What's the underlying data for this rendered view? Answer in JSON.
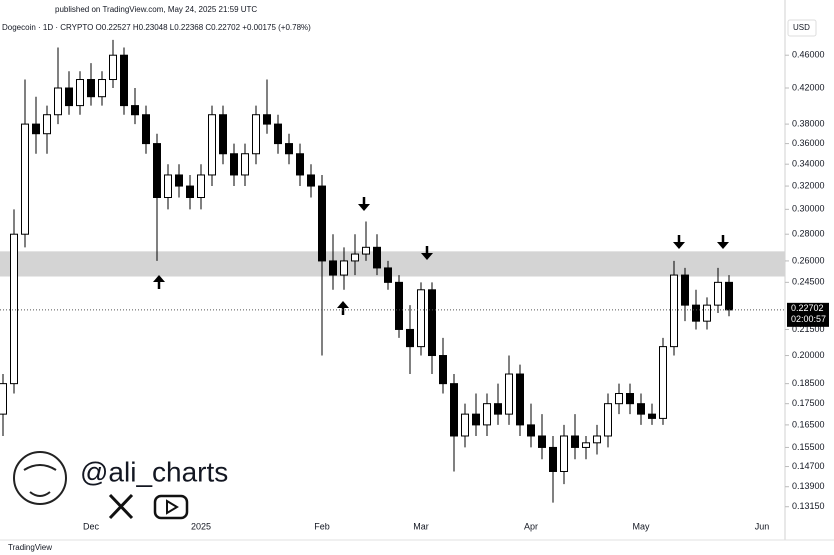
{
  "header": {
    "published": "published on TradingView.com, May 24, 2025 21:59 UTC",
    "footer": "TradingView",
    "handle": "@ali_charts"
  },
  "chart_data": {
    "type": "candlestick",
    "title": "Dogecoin · 1D · CRYPTO  O0.22527 H0.23048 L0.22368 C0.22702 +0.00175 (+0.78%)",
    "currency": "USD",
    "yscale": "log",
    "ylim": [
      0.125,
      0.51
    ],
    "yticks": [
      {
        "value": 0.46,
        "label": "0.46000"
      },
      {
        "value": 0.42,
        "label": "0.42000"
      },
      {
        "value": 0.38,
        "label": "0.38000"
      },
      {
        "value": 0.36,
        "label": "0.36000"
      },
      {
        "value": 0.34,
        "label": "0.34000"
      },
      {
        "value": 0.32,
        "label": "0.32000"
      },
      {
        "value": 0.3,
        "label": "0.30000"
      },
      {
        "value": 0.28,
        "label": "0.28000"
      },
      {
        "value": 0.26,
        "label": "0.26000"
      },
      {
        "value": 0.245,
        "label": "0.24500"
      },
      {
        "value": 0.215,
        "label": "0.21500"
      },
      {
        "value": 0.2,
        "label": "0.20000"
      },
      {
        "value": 0.185,
        "label": "0.18500"
      },
      {
        "value": 0.175,
        "label": "0.17500"
      },
      {
        "value": 0.165,
        "label": "0.16500"
      },
      {
        "value": 0.155,
        "label": "0.15500"
      },
      {
        "value": 0.147,
        "label": "0.14700"
      },
      {
        "value": 0.139,
        "label": "0.13900"
      },
      {
        "value": 0.1315,
        "label": "0.13150"
      }
    ],
    "categories": [
      null,
      null,
      null,
      null,
      null,
      null,
      null,
      null,
      "Dec",
      null,
      null,
      null,
      null,
      null,
      null,
      null,
      null,
      null,
      "2025",
      null,
      null,
      null,
      null,
      null,
      null,
      null,
      null,
      null,
      null,
      "Feb",
      null,
      null,
      null,
      null,
      null,
      null,
      null,
      null,
      "Mar",
      null,
      null,
      null,
      null,
      null,
      null,
      null,
      null,
      null,
      "Apr",
      null,
      null,
      null,
      null,
      null,
      null,
      null,
      null,
      null,
      "May",
      null,
      null,
      null,
      null,
      null,
      null,
      null,
      null,
      null,
      null,
      "Jun"
    ],
    "values": [
      [
        0.17,
        0.19,
        0.16,
        0.185
      ],
      [
        0.185,
        0.3,
        0.18,
        0.28
      ],
      [
        0.28,
        0.43,
        0.27,
        0.38
      ],
      [
        0.38,
        0.41,
        0.35,
        0.37
      ],
      [
        0.37,
        0.4,
        0.35,
        0.39
      ],
      [
        0.39,
        0.47,
        0.38,
        0.42
      ],
      [
        0.42,
        0.44,
        0.39,
        0.4
      ],
      [
        0.4,
        0.44,
        0.39,
        0.43
      ],
      [
        0.43,
        0.45,
        0.4,
        0.41
      ],
      [
        0.41,
        0.44,
        0.4,
        0.43
      ],
      [
        0.43,
        0.48,
        0.42,
        0.46
      ],
      [
        0.46,
        0.47,
        0.39,
        0.4
      ],
      [
        0.4,
        0.42,
        0.38,
        0.39
      ],
      [
        0.39,
        0.4,
        0.35,
        0.36
      ],
      [
        0.36,
        0.37,
        0.26,
        0.31
      ],
      [
        0.31,
        0.34,
        0.3,
        0.33
      ],
      [
        0.33,
        0.34,
        0.31,
        0.32
      ],
      [
        0.32,
        0.33,
        0.3,
        0.31
      ],
      [
        0.31,
        0.34,
        0.3,
        0.33
      ],
      [
        0.33,
        0.4,
        0.32,
        0.39
      ],
      [
        0.39,
        0.4,
        0.34,
        0.35
      ],
      [
        0.35,
        0.36,
        0.32,
        0.33
      ],
      [
        0.33,
        0.36,
        0.32,
        0.35
      ],
      [
        0.35,
        0.4,
        0.34,
        0.39
      ],
      [
        0.39,
        0.43,
        0.37,
        0.38
      ],
      [
        0.38,
        0.39,
        0.35,
        0.36
      ],
      [
        0.36,
        0.37,
        0.34,
        0.35
      ],
      [
        0.35,
        0.36,
        0.32,
        0.33
      ],
      [
        0.33,
        0.34,
        0.31,
        0.32
      ],
      [
        0.32,
        0.33,
        0.2,
        0.26
      ],
      [
        0.26,
        0.28,
        0.24,
        0.25
      ],
      [
        0.25,
        0.27,
        0.24,
        0.26
      ],
      [
        0.26,
        0.28,
        0.25,
        0.265
      ],
      [
        0.265,
        0.29,
        0.26,
        0.27
      ],
      [
        0.27,
        0.28,
        0.25,
        0.255
      ],
      [
        0.255,
        0.26,
        0.24,
        0.245
      ],
      [
        0.245,
        0.25,
        0.21,
        0.215
      ],
      [
        0.215,
        0.23,
        0.19,
        0.205
      ],
      [
        0.205,
        0.245,
        0.2,
        0.24
      ],
      [
        0.24,
        0.245,
        0.19,
        0.2
      ],
      [
        0.2,
        0.21,
        0.18,
        0.185
      ],
      [
        0.185,
        0.19,
        0.145,
        0.16
      ],
      [
        0.16,
        0.175,
        0.155,
        0.17
      ],
      [
        0.17,
        0.18,
        0.16,
        0.165
      ],
      [
        0.165,
        0.18,
        0.16,
        0.175
      ],
      [
        0.175,
        0.185,
        0.165,
        0.17
      ],
      [
        0.17,
        0.2,
        0.165,
        0.19
      ],
      [
        0.19,
        0.195,
        0.16,
        0.165
      ],
      [
        0.165,
        0.175,
        0.155,
        0.16
      ],
      [
        0.16,
        0.17,
        0.15,
        0.155
      ],
      [
        0.155,
        0.16,
        0.133,
        0.145
      ],
      [
        0.145,
        0.165,
        0.14,
        0.16
      ],
      [
        0.16,
        0.17,
        0.15,
        0.155
      ],
      [
        0.155,
        0.16,
        0.15,
        0.157
      ],
      [
        0.157,
        0.165,
        0.152,
        0.16
      ],
      [
        0.16,
        0.18,
        0.155,
        0.175
      ],
      [
        0.175,
        0.185,
        0.17,
        0.18
      ],
      [
        0.18,
        0.185,
        0.17,
        0.175
      ],
      [
        0.175,
        0.18,
        0.165,
        0.17
      ],
      [
        0.17,
        0.175,
        0.165,
        0.168
      ],
      [
        0.168,
        0.21,
        0.165,
        0.205
      ],
      [
        0.205,
        0.26,
        0.2,
        0.25
      ],
      [
        0.25,
        0.255,
        0.22,
        0.23
      ],
      [
        0.23,
        0.24,
        0.215,
        0.22
      ],
      [
        0.22,
        0.235,
        0.215,
        0.23
      ],
      [
        0.23,
        0.255,
        0.225,
        0.245
      ],
      [
        0.245,
        0.25,
        0.223,
        0.227
      ],
      null,
      null,
      null
    ],
    "up_color": "#ffffff",
    "down_color": "#000000",
    "wick_color": "#000000",
    "zone": [
      0.249,
      0.267
    ],
    "zone_color": "#d4d4d4",
    "current_price": 0.22702,
    "countdown": "02:00:57"
  }
}
